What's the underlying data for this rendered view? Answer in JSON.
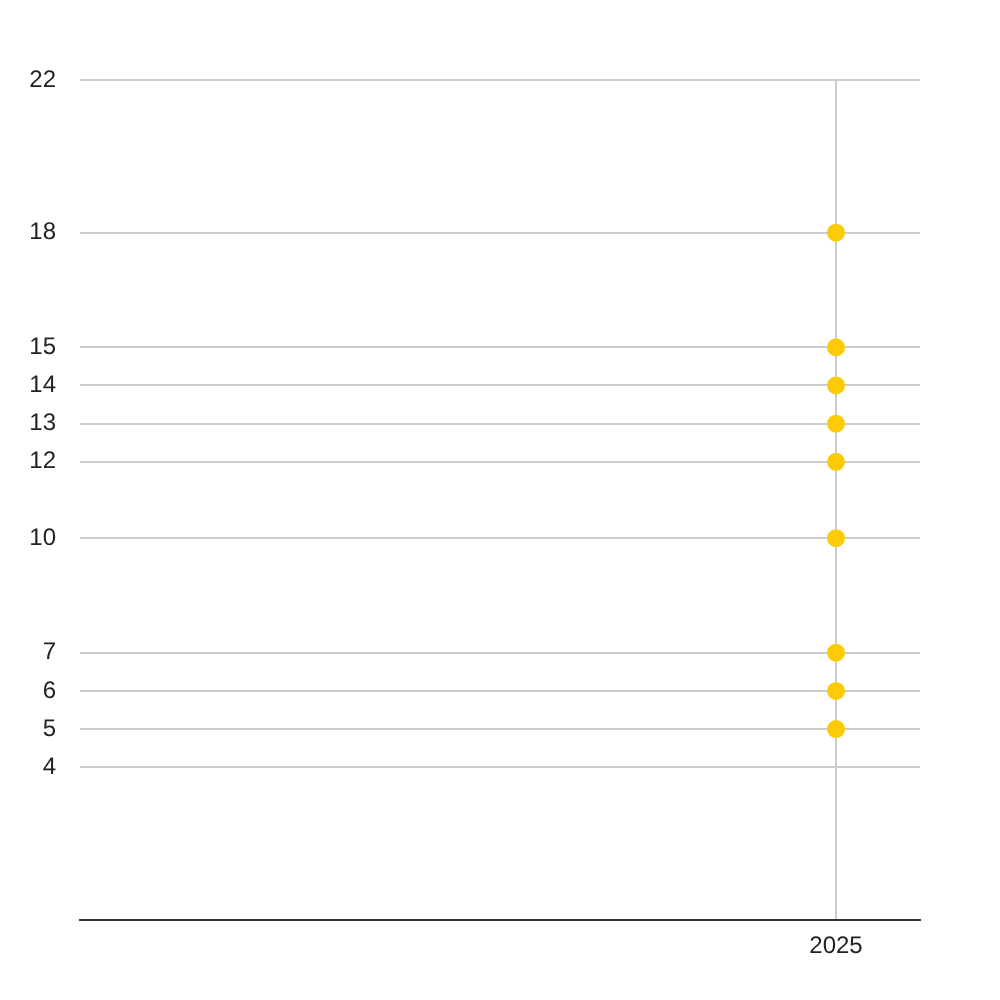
{
  "chart_data": {
    "type": "scatter",
    "categories": [
      null,
      null,
      null,
      null,
      "2025"
    ],
    "series": [
      {
        "color": "#fccb05",
        "values": [
          null,
          null,
          null,
          null,
          18
        ]
      },
      {
        "color": "#fccb05",
        "values": [
          null,
          null,
          null,
          null,
          15
        ]
      },
      {
        "color": "#fccb05",
        "values": [
          null,
          null,
          null,
          null,
          14
        ]
      },
      {
        "color": "#fccb05",
        "values": [
          null,
          null,
          null,
          null,
          13
        ]
      },
      {
        "color": "#fccb05",
        "values": [
          null,
          null,
          null,
          null,
          12
        ]
      },
      {
        "color": "#fccb05",
        "values": [
          null,
          null,
          null,
          null,
          10
        ]
      },
      {
        "color": "#fccb05",
        "values": [
          null,
          null,
          null,
          null,
          7
        ]
      },
      {
        "color": "#fccb05",
        "values": [
          null,
          null,
          null,
          null,
          6
        ]
      },
      {
        "color": "#fccb05",
        "values": [
          null,
          null,
          null,
          null,
          5
        ]
      }
    ],
    "ylim": [
      0,
      22
    ],
    "yticks": [
      4,
      5,
      6,
      7,
      10,
      12,
      13,
      14,
      15,
      18,
      22
    ],
    "grid": true,
    "marker": "circle"
  }
}
